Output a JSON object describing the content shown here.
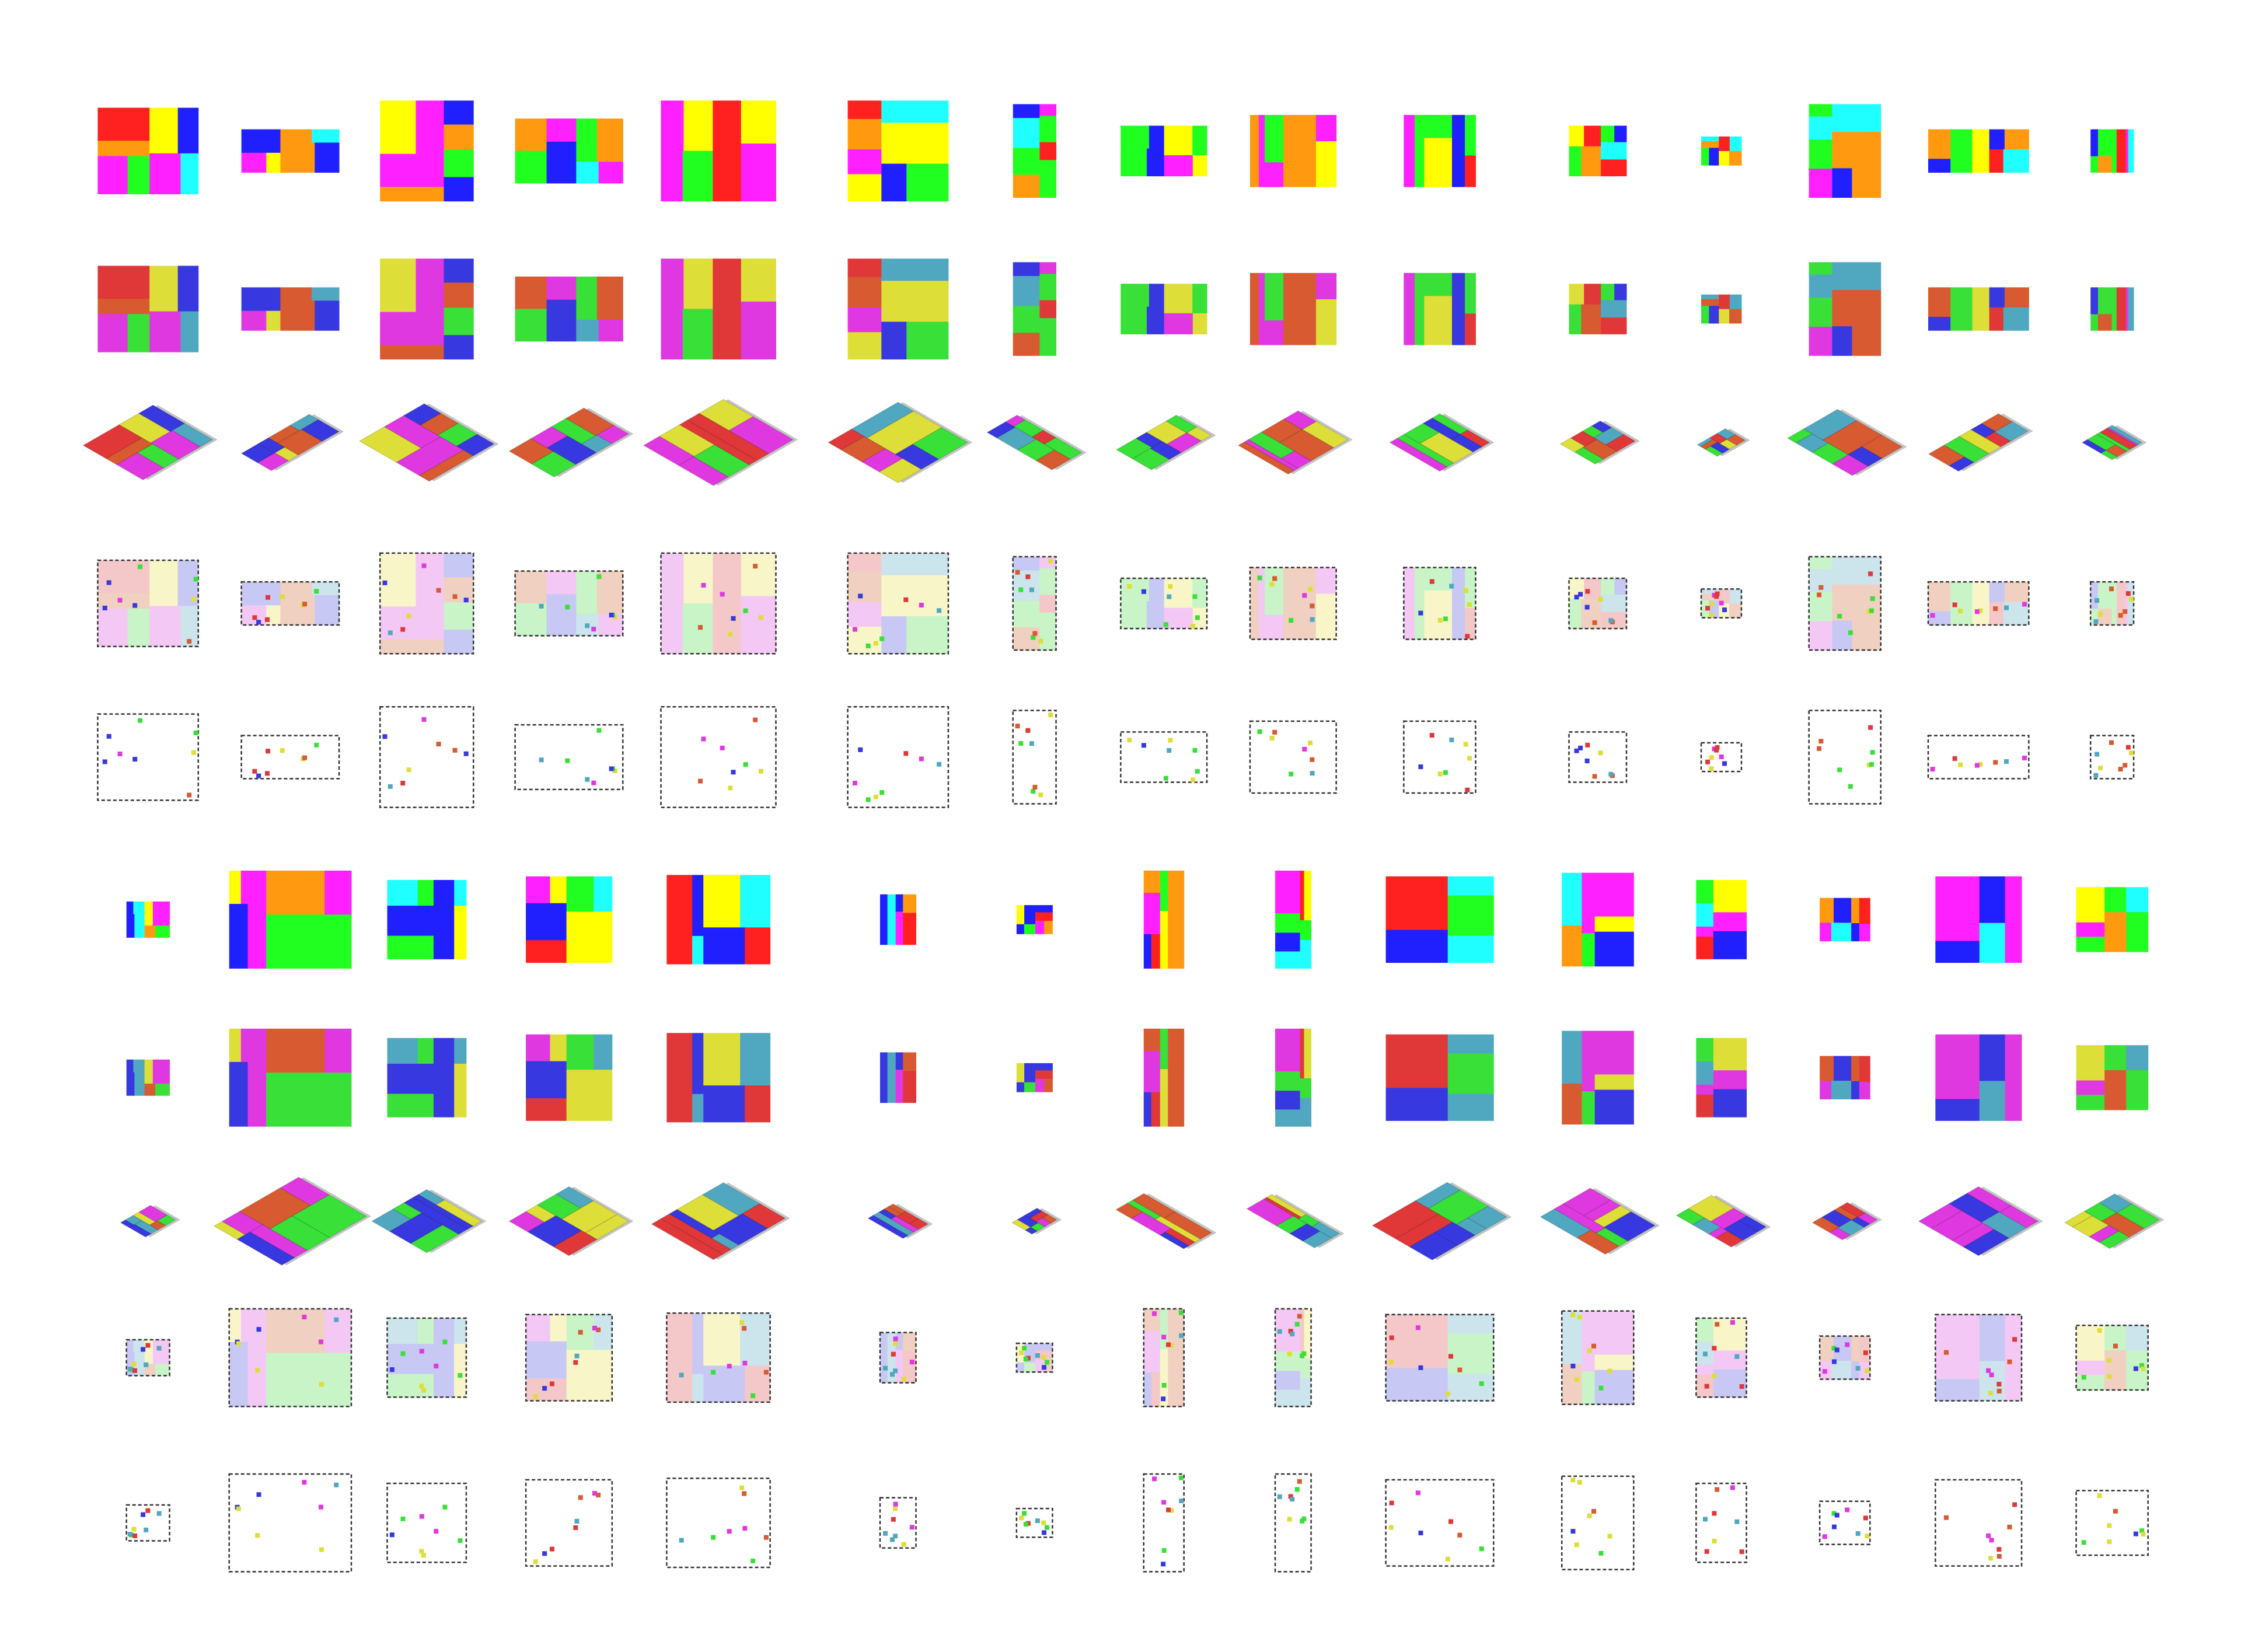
{
  "figure": {
    "row_types": [
      "plan",
      "blob",
      "isometric",
      "pastel-regions",
      "room-points"
    ],
    "block_count": 2,
    "columns_per_block": 15,
    "palette": {
      "plan": [
        "#ff2020",
        "#ffff00",
        "#20ff20",
        "#ff20ff",
        "#2020ff",
        "#20ffff",
        "#ff9a10"
      ],
      "blob": [
        "#e03838",
        "#dede38",
        "#38e038",
        "#e038e0",
        "#3838e0",
        "#50a8c0",
        "#d85a30"
      ],
      "pastel": [
        "#f4c8c8",
        "#f8f6c8",
        "#c8f4c8",
        "#f4c8f4",
        "#c8c8f4",
        "#cce4ec",
        "#f0d0c0"
      ],
      "border": "#333333"
    }
  }
}
